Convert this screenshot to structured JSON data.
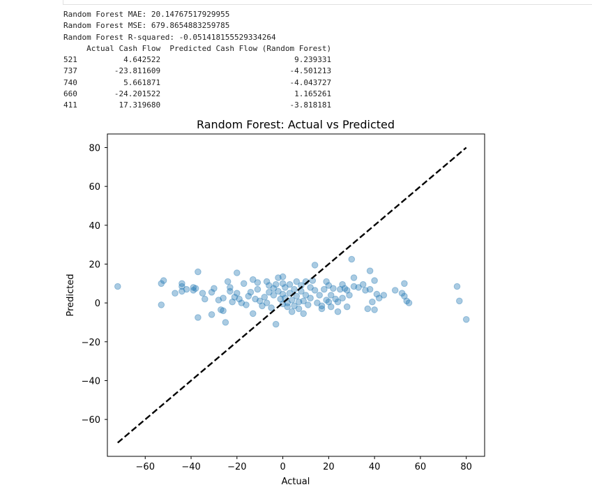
{
  "output": {
    "lines": [
      "Random Forest MAE: 20.14767517929955",
      "Random Forest MSE: 679.8654883259785",
      "Random Forest R-squared: -0.051418155529334264",
      "     Actual Cash Flow  Predicted Cash Flow (Random Forest)",
      "521          4.642522                             9.239331",
      "737        -23.811609                            -4.501213",
      "740          5.661871                            -4.043727",
      "660        -24.201522                             1.165261",
      "411         17.319680                            -3.818181"
    ]
  },
  "colors": {
    "points": "#1f77b4",
    "ideal_line": "#000000",
    "axes": "#000000"
  },
  "chart_data": {
    "type": "scatter",
    "title": "Random Forest: Actual vs Predicted",
    "xlabel": "Actual",
    "ylabel": "Predicted",
    "xlim": [
      -76.5,
      88
    ],
    "ylim": [
      -79,
      87
    ],
    "xticks": [
      -60,
      -40,
      -20,
      0,
      20,
      40,
      60,
      80
    ],
    "yticks": [
      -60,
      -40,
      -20,
      0,
      20,
      40,
      60,
      80
    ],
    "xticklabels": [
      "−60",
      "−40",
      "−20",
      "0",
      "20",
      "40",
      "60",
      "80"
    ],
    "yticklabels": [
      "−60",
      "−40",
      "−20",
      "0",
      "20",
      "40",
      "60",
      "80"
    ],
    "grid": false,
    "reference_line": {
      "style": "dashed",
      "from": [
        -72,
        -72
      ],
      "to": [
        80,
        80
      ]
    },
    "points": [
      [
        -72,
        8.5
      ],
      [
        -53,
        10
      ],
      [
        -52,
        11.5
      ],
      [
        -53,
        -1
      ],
      [
        -47,
        5
      ],
      [
        -44,
        10
      ],
      [
        -44,
        8.5
      ],
      [
        -44,
        6
      ],
      [
        -42,
        7
      ],
      [
        -39,
        8
      ],
      [
        -39,
        6.5
      ],
      [
        -38,
        7.5
      ],
      [
        -37,
        16
      ],
      [
        -37,
        -7.5
      ],
      [
        -35,
        5
      ],
      [
        -34,
        2
      ],
      [
        -31,
        5.5
      ],
      [
        -31,
        -6
      ],
      [
        -30,
        7.5
      ],
      [
        -28,
        1.5
      ],
      [
        -27,
        -3.5
      ],
      [
        -26,
        2.5
      ],
      [
        -26,
        -4
      ],
      [
        -25,
        -10
      ],
      [
        -24,
        11
      ],
      [
        -23,
        8
      ],
      [
        -23,
        6
      ],
      [
        -22,
        0.5
      ],
      [
        -21,
        3
      ],
      [
        -20,
        15.5
      ],
      [
        -20,
        5
      ],
      [
        -19,
        2
      ],
      [
        -18,
        0
      ],
      [
        -17,
        10
      ],
      [
        -16,
        -1
      ],
      [
        -15,
        3.5
      ],
      [
        -14,
        5.5
      ],
      [
        -13,
        12
      ],
      [
        -13,
        -5.5
      ],
      [
        -12,
        2
      ],
      [
        -11,
        10.5
      ],
      [
        -11,
        7
      ],
      [
        -10,
        1
      ],
      [
        -9,
        -1.5
      ],
      [
        -8,
        3
      ],
      [
        -7,
        11
      ],
      [
        -7,
        0
      ],
      [
        -6,
        9
      ],
      [
        -6,
        5.5
      ],
      [
        -5,
        -2.5
      ],
      [
        -4,
        7.5
      ],
      [
        -4,
        4
      ],
      [
        -3,
        9.5
      ],
      [
        -3,
        -11
      ],
      [
        -2,
        13
      ],
      [
        -2,
        6
      ],
      [
        -1,
        2
      ],
      [
        0,
        13.5
      ],
      [
        0,
        10
      ],
      [
        0,
        4.5
      ],
      [
        0,
        -0.5
      ],
      [
        1,
        8
      ],
      [
        1,
        2.5
      ],
      [
        2,
        0
      ],
      [
        2,
        -2
      ],
      [
        3,
        9.5
      ],
      [
        3,
        5
      ],
      [
        4,
        1.5
      ],
      [
        4,
        -4.5
      ],
      [
        5,
        7
      ],
      [
        5,
        -1.5
      ],
      [
        6,
        11
      ],
      [
        6,
        3.5
      ],
      [
        7,
        0.5
      ],
      [
        7,
        -3
      ],
      [
        8,
        9
      ],
      [
        8,
        6
      ],
      [
        9,
        1
      ],
      [
        9,
        -5.5
      ],
      [
        10,
        11
      ],
      [
        10,
        4
      ],
      [
        11,
        -1
      ],
      [
        12,
        8
      ],
      [
        12,
        2.5
      ],
      [
        13,
        11.5
      ],
      [
        14,
        19.5
      ],
      [
        14,
        6.5
      ],
      [
        15,
        0
      ],
      [
        16,
        4
      ],
      [
        17,
        -3
      ],
      [
        17,
        -1.5
      ],
      [
        18,
        7
      ],
      [
        19,
        1.5
      ],
      [
        19,
        11
      ],
      [
        20,
        9
      ],
      [
        20,
        0.5
      ],
      [
        21,
        4
      ],
      [
        21,
        -2
      ],
      [
        22,
        7.5
      ],
      [
        23,
        2
      ],
      [
        24,
        0.5
      ],
      [
        24,
        -4.5
      ],
      [
        25,
        7
      ],
      [
        26,
        9.5
      ],
      [
        26,
        2.5
      ],
      [
        27,
        7.5
      ],
      [
        28,
        -2
      ],
      [
        28,
        6.5
      ],
      [
        29,
        4
      ],
      [
        30,
        22.5
      ],
      [
        31,
        8.5
      ],
      [
        31,
        13
      ],
      [
        33,
        8
      ],
      [
        35,
        9.5
      ],
      [
        36,
        6.5
      ],
      [
        37,
        -3
      ],
      [
        38,
        16.5
      ],
      [
        38,
        7
      ],
      [
        39,
        0.5
      ],
      [
        40,
        -3.5
      ],
      [
        40,
        11.5
      ],
      [
        41,
        4.5
      ],
      [
        42,
        2.5
      ],
      [
        44,
        4
      ],
      [
        49,
        6.5
      ],
      [
        52,
        5
      ],
      [
        53,
        10
      ],
      [
        53,
        3.5
      ],
      [
        54,
        1
      ],
      [
        55,
        0
      ],
      [
        76,
        8.5
      ],
      [
        77,
        1
      ],
      [
        80,
        -8.5
      ]
    ]
  }
}
